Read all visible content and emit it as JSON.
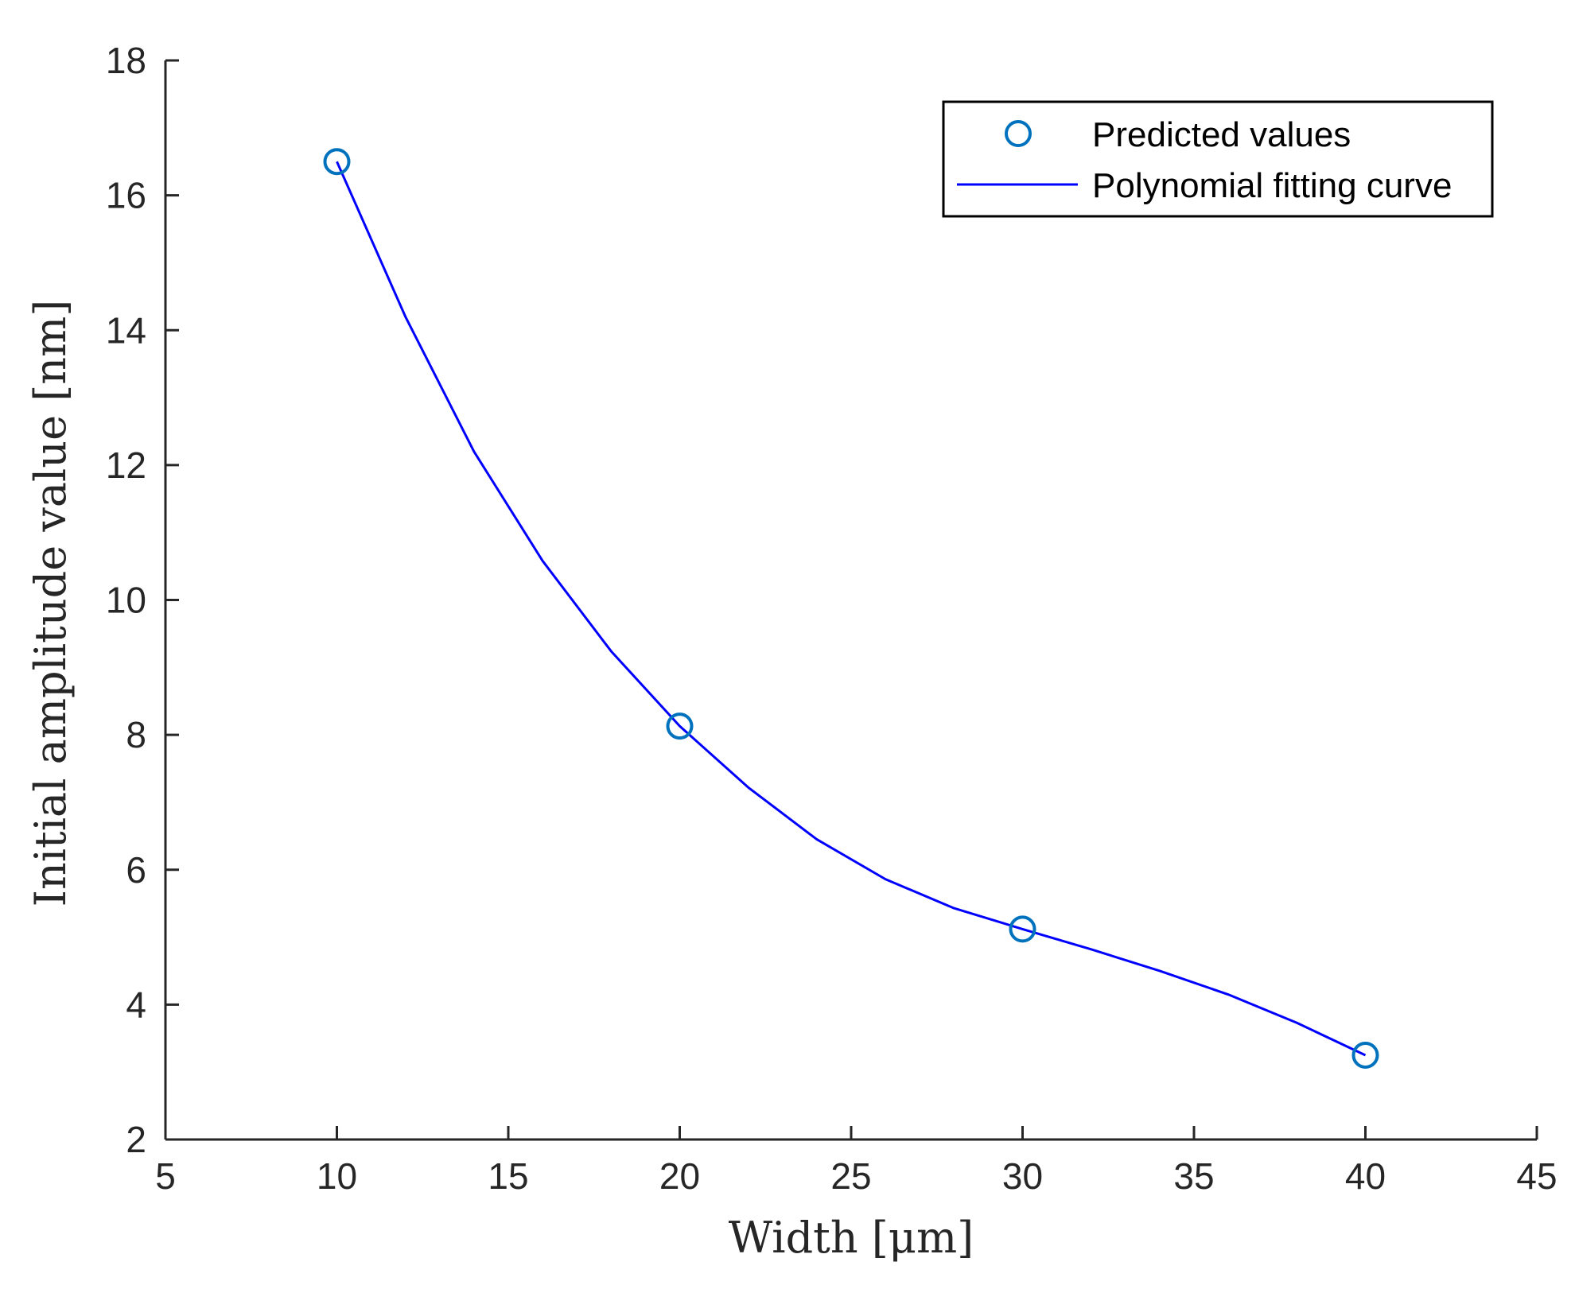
{
  "chart_data": {
    "type": "line",
    "title": "",
    "xlabel": "Width [μm]",
    "ylabel": "Initial amplitude value [nm]",
    "xlim": [
      5,
      45
    ],
    "ylim": [
      2,
      18
    ],
    "xticks": [
      5,
      10,
      15,
      20,
      25,
      30,
      35,
      40,
      45
    ],
    "yticks": [
      2,
      4,
      6,
      8,
      10,
      12,
      14,
      16,
      18
    ],
    "xtick_labels": [
      "5",
      "10",
      "15",
      "20",
      "25",
      "30",
      "35",
      "40",
      "45"
    ],
    "ytick_labels": [
      "2",
      "4",
      "6",
      "8",
      "10",
      "12",
      "14",
      "16",
      "18"
    ],
    "grid": false,
    "legend_position": "top-right",
    "series": [
      {
        "name": "Predicted values",
        "kind": "scatter",
        "marker": "circle",
        "color": "#0072BD",
        "x": [
          10,
          20,
          30,
          40
        ],
        "y": [
          16.5,
          8.13,
          5.12,
          3.25
        ]
      },
      {
        "name": "Polynomial fitting curve",
        "kind": "line",
        "color": "#0000FF",
        "x": [
          10,
          12,
          14,
          16,
          18,
          20,
          22,
          24,
          26,
          28,
          30,
          32,
          34,
          36,
          38,
          40
        ],
        "y": [
          16.5,
          14.2,
          12.2,
          10.58,
          9.24,
          8.13,
          7.22,
          6.45,
          5.86,
          5.43,
          5.12,
          4.82,
          4.5,
          4.15,
          3.73,
          3.25
        ]
      }
    ]
  }
}
